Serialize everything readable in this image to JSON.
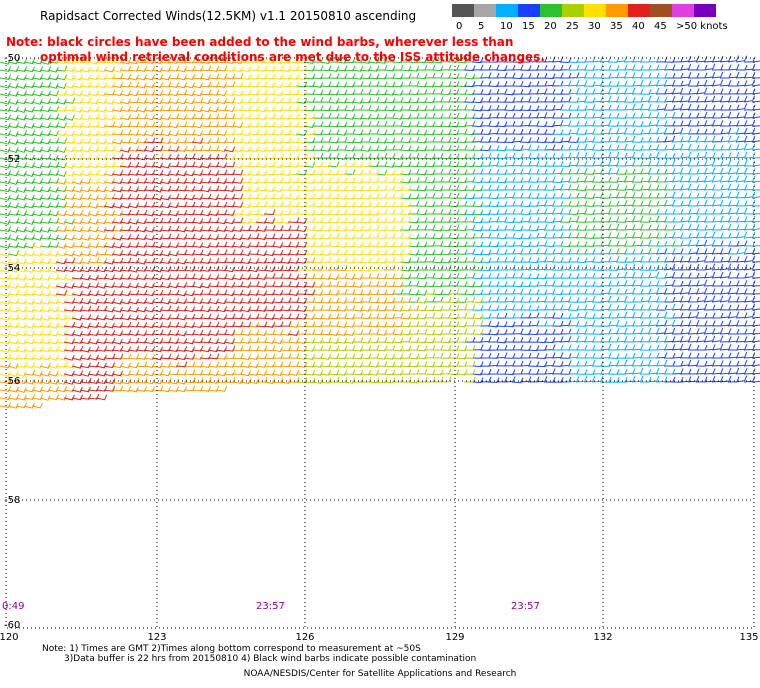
{
  "title": "Rapidsact Corrected Winds(12.5KM) v1.1 20150810 ascending",
  "note_red": {
    "line1": "Note: black circles have been added to the wind barbs, wherever less than",
    "line2": "optimal wind retrieval conditions are met due to the ISS attitude changes."
  },
  "legend": {
    "ticks": [
      "0",
      "5",
      "10",
      "15",
      "20",
      "25",
      "30",
      "35",
      "40",
      "45",
      ">50 knots"
    ],
    "colors": [
      "#555555",
      "#a6a6a6",
      "#00b0ff",
      "#1a40ff",
      "#2ec02e",
      "#aad000",
      "#ffe000",
      "#ff9a00",
      "#e02020",
      "#a05020",
      "#e040e0",
      "#7a00c0"
    ]
  },
  "axes": {
    "lat_labels": [
      "-50",
      "-52",
      "-54",
      "-56",
      "-58",
      "-60"
    ],
    "lon_labels": [
      "120",
      "123",
      "126",
      "129",
      "132",
      "135"
    ]
  },
  "times": [
    "0:49",
    "23:57",
    "23:57"
  ],
  "footnote": {
    "line1": "Note: 1) Times are GMT 2)Times along bottom correspond to measurement at ~50S",
    "line2": "3)Data buffer is 22 hrs from 20150810 4) Black wind barbs indicate possible contamination"
  },
  "credit": "NOAA/NESDIS/Center for Satellite Applications and Research"
}
